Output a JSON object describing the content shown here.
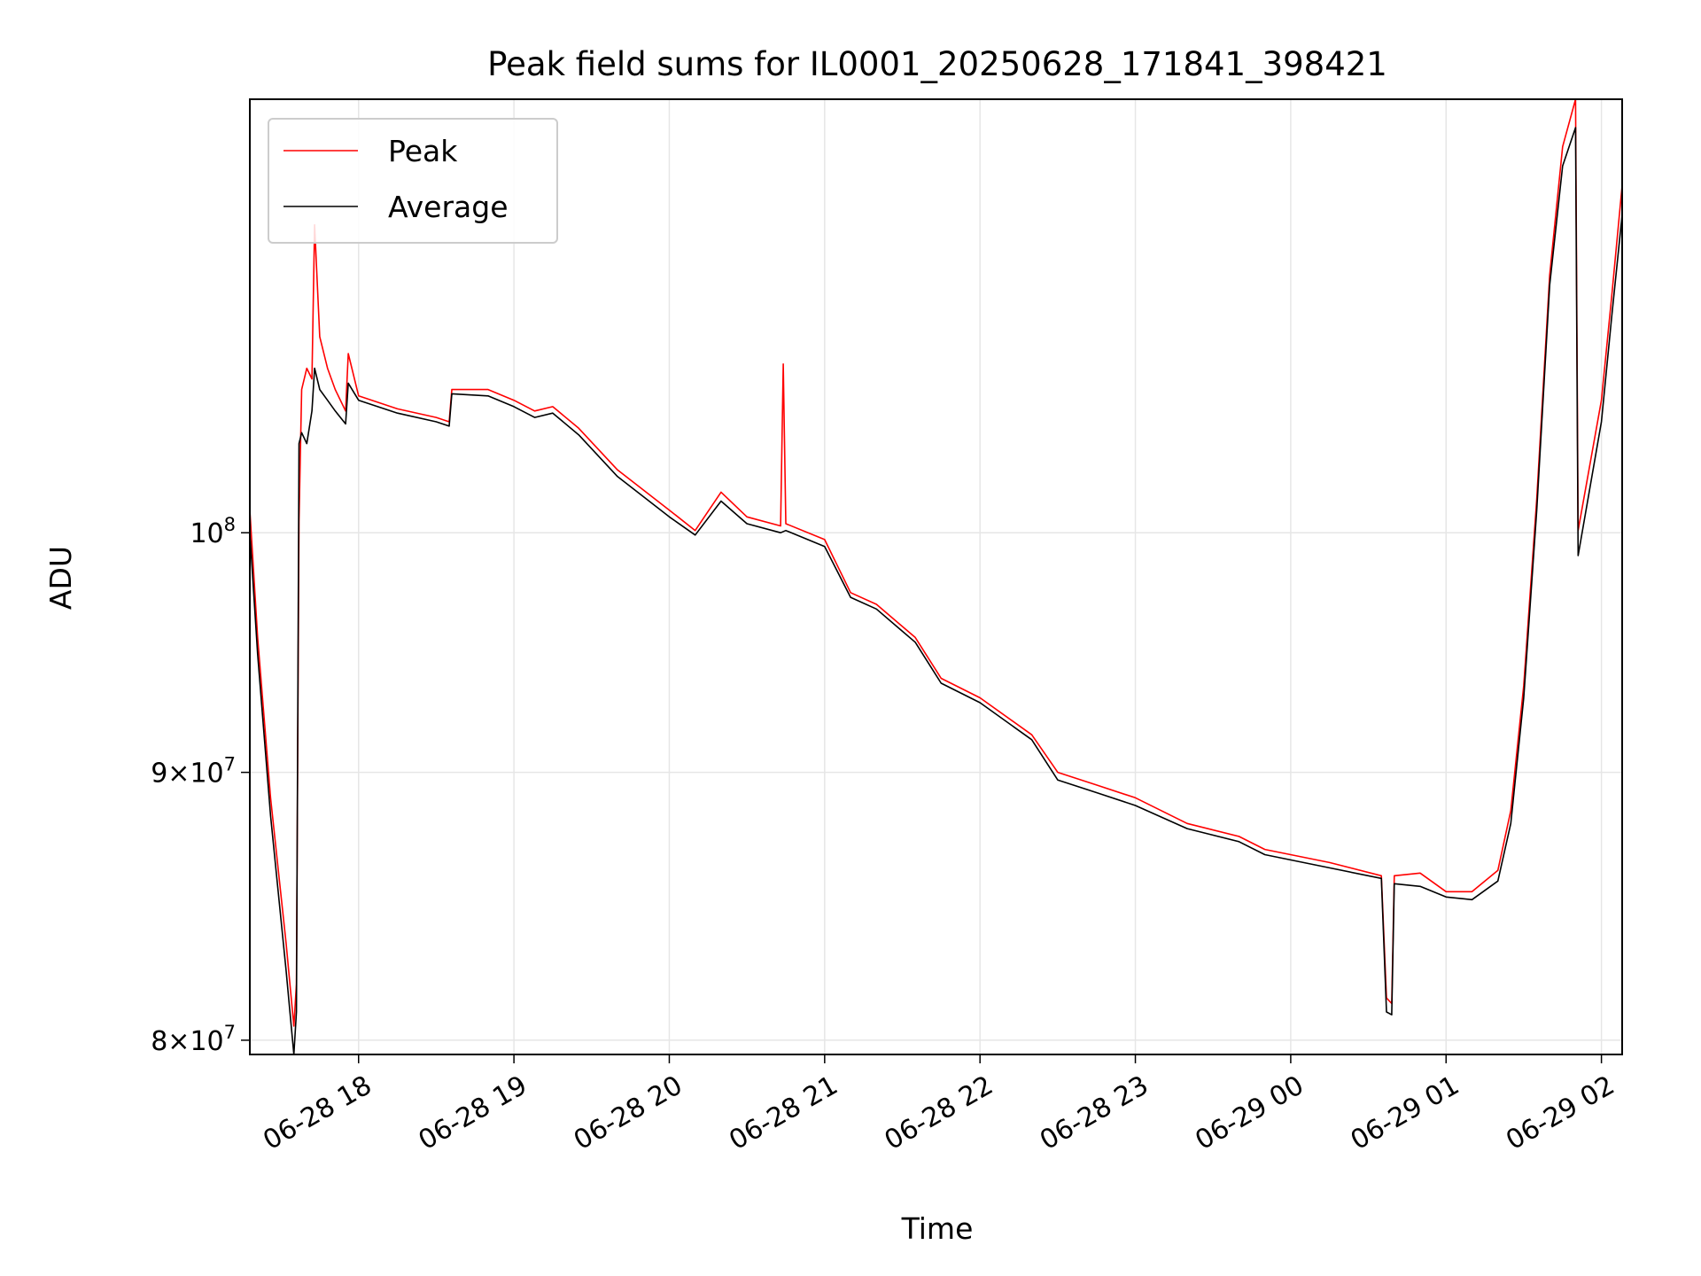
{
  "chart_data": {
    "type": "line",
    "title": "Peak field sums for IL0001_20250628_171841_398421",
    "xlabel": "Time",
    "ylabel": "ADU",
    "y_scale": "log",
    "x_start": "2025-06-28 17:18",
    "x_end": "2025-06-29 02:08",
    "xlim": [
      "2025-06-28 17:18",
      "2025-06-29 02:08"
    ],
    "ylim": [
      79500000,
      121000000
    ],
    "x_tick_labels": [
      "06-28 18",
      "06-28 19",
      "06-28 20",
      "06-28 21",
      "06-28 22",
      "06-28 23",
      "06-29 00",
      "06-29 01",
      "06-29 02"
    ],
    "x_tick_times": [
      "2025-06-28 18:00",
      "2025-06-28 19:00",
      "2025-06-28 20:00",
      "2025-06-28 21:00",
      "2025-06-28 22:00",
      "2025-06-28 23:00",
      "2025-06-29 00:00",
      "2025-06-29 01:00",
      "2025-06-29 02:00"
    ],
    "y_ticks": [
      {
        "value": 80000000,
        "mantissa": "8",
        "base": "10",
        "exp": "7"
      },
      {
        "value": 90000000,
        "mantissa": "9",
        "base": "10",
        "exp": "7"
      },
      {
        "value": 100000000,
        "mantissa": "",
        "base": "10",
        "exp": "8"
      }
    ],
    "grid": true,
    "legend": {
      "position": "top-left",
      "entries": [
        "Peak",
        "Average"
      ]
    },
    "series": [
      {
        "name": "Peak",
        "color": "#ff0000",
        "points": [
          [
            "2025-06-28 17:18",
            101000000
          ],
          [
            "2025-06-28 17:21",
            95500000
          ],
          [
            "2025-06-28 17:26",
            89000000
          ],
          [
            "2025-06-28 17:32",
            83500000
          ],
          [
            "2025-06-28 17:35",
            80500000
          ],
          [
            "2025-06-28 17:36",
            82000000
          ],
          [
            "2025-06-28 17:37",
            100500000
          ],
          [
            "2025-06-28 17:38",
            106500000
          ],
          [
            "2025-06-28 17:40",
            107500000
          ],
          [
            "2025-06-28 17:42",
            107000000
          ],
          [
            "2025-06-28 17:43",
            114500000
          ],
          [
            "2025-06-28 17:45",
            109000000
          ],
          [
            "2025-06-28 17:48",
            107500000
          ],
          [
            "2025-06-28 17:51",
            106500000
          ],
          [
            "2025-06-28 17:55",
            105500000
          ],
          [
            "2025-06-28 17:56",
            108200000
          ],
          [
            "2025-06-28 18:00",
            106200000
          ],
          [
            "2025-06-28 18:15",
            105600000
          ],
          [
            "2025-06-28 18:30",
            105200000
          ],
          [
            "2025-06-28 18:35",
            105000000
          ],
          [
            "2025-06-28 18:36",
            106500000
          ],
          [
            "2025-06-28 18:50",
            106500000
          ],
          [
            "2025-06-28 19:00",
            106000000
          ],
          [
            "2025-06-28 19:08",
            105500000
          ],
          [
            "2025-06-28 19:15",
            105700000
          ],
          [
            "2025-06-28 19:25",
            104700000
          ],
          [
            "2025-06-28 19:40",
            102800000
          ],
          [
            "2025-06-28 20:00",
            101000000
          ],
          [
            "2025-06-28 20:10",
            100100000
          ],
          [
            "2025-06-28 20:20",
            101800000
          ],
          [
            "2025-06-28 20:30",
            100700000
          ],
          [
            "2025-06-28 20:43",
            100300000
          ],
          [
            "2025-06-28 20:44",
            107700000
          ],
          [
            "2025-06-28 20:45",
            100400000
          ],
          [
            "2025-06-28 21:00",
            99700000
          ],
          [
            "2025-06-28 21:10",
            97400000
          ],
          [
            "2025-06-28 21:20",
            96900000
          ],
          [
            "2025-06-28 21:35",
            95500000
          ],
          [
            "2025-06-28 21:45",
            93800000
          ],
          [
            "2025-06-28 22:00",
            93000000
          ],
          [
            "2025-06-28 22:20",
            91500000
          ],
          [
            "2025-06-28 22:30",
            90000000
          ],
          [
            "2025-06-28 22:45",
            89500000
          ],
          [
            "2025-06-28 23:00",
            89000000
          ],
          [
            "2025-06-28 23:20",
            88000000
          ],
          [
            "2025-06-28 23:40",
            87500000
          ],
          [
            "2025-06-28 23:50",
            87000000
          ],
          [
            "2025-06-29 00:15",
            86500000
          ],
          [
            "2025-06-29 00:35",
            86000000
          ],
          [
            "2025-06-29 00:37",
            81500000
          ],
          [
            "2025-06-29 00:39",
            81300000
          ],
          [
            "2025-06-29 00:40",
            86000000
          ],
          [
            "2025-06-29 00:50",
            86100000
          ],
          [
            "2025-06-29 01:00",
            85400000
          ],
          [
            "2025-06-29 01:10",
            85400000
          ],
          [
            "2025-06-29 01:20",
            86200000
          ],
          [
            "2025-06-29 01:25",
            88500000
          ],
          [
            "2025-06-29 01:30",
            93500000
          ],
          [
            "2025-06-29 01:35",
            101500000
          ],
          [
            "2025-06-29 01:40",
            112000000
          ],
          [
            "2025-06-29 01:45",
            118500000
          ],
          [
            "2025-06-29 01:50",
            121000000
          ],
          [
            "2025-06-29 01:51",
            100100000
          ],
          [
            "2025-06-29 02:00",
            106000000
          ],
          [
            "2025-06-29 02:04",
            111000000
          ],
          [
            "2025-06-29 02:08",
            116500000
          ]
        ]
      },
      {
        "name": "Average",
        "color": "#000000",
        "points": [
          [
            "2025-06-28 17:18",
            100000000
          ],
          [
            "2025-06-28 17:21",
            94800000
          ],
          [
            "2025-06-28 17:26",
            88300000
          ],
          [
            "2025-06-28 17:32",
            82500000
          ],
          [
            "2025-06-28 17:35",
            79500000
          ],
          [
            "2025-06-28 17:36",
            81000000
          ],
          [
            "2025-06-28 17:37",
            104000000
          ],
          [
            "2025-06-28 17:38",
            104500000
          ],
          [
            "2025-06-28 17:40",
            104000000
          ],
          [
            "2025-06-28 17:42",
            105500000
          ],
          [
            "2025-06-28 17:43",
            107500000
          ],
          [
            "2025-06-28 17:45",
            106500000
          ],
          [
            "2025-06-28 17:48",
            106000000
          ],
          [
            "2025-06-28 17:51",
            105500000
          ],
          [
            "2025-06-28 17:55",
            104900000
          ],
          [
            "2025-06-28 17:56",
            106800000
          ],
          [
            "2025-06-28 18:00",
            106000000
          ],
          [
            "2025-06-28 18:15",
            105400000
          ],
          [
            "2025-06-28 18:30",
            105000000
          ],
          [
            "2025-06-28 18:35",
            104800000
          ],
          [
            "2025-06-28 18:36",
            106300000
          ],
          [
            "2025-06-28 18:50",
            106200000
          ],
          [
            "2025-06-28 19:00",
            105700000
          ],
          [
            "2025-06-28 19:08",
            105200000
          ],
          [
            "2025-06-28 19:15",
            105400000
          ],
          [
            "2025-06-28 19:25",
            104400000
          ],
          [
            "2025-06-28 19:40",
            102500000
          ],
          [
            "2025-06-28 20:00",
            100700000
          ],
          [
            "2025-06-28 20:10",
            99900000
          ],
          [
            "2025-06-28 20:20",
            101400000
          ],
          [
            "2025-06-28 20:30",
            100400000
          ],
          [
            "2025-06-28 20:43",
            100000000
          ],
          [
            "2025-06-28 20:45",
            100100000
          ],
          [
            "2025-06-28 21:00",
            99400000
          ],
          [
            "2025-06-28 21:10",
            97200000
          ],
          [
            "2025-06-28 21:20",
            96700000
          ],
          [
            "2025-06-28 21:35",
            95300000
          ],
          [
            "2025-06-28 21:45",
            93600000
          ],
          [
            "2025-06-28 22:00",
            92800000
          ],
          [
            "2025-06-28 22:20",
            91300000
          ],
          [
            "2025-06-28 22:30",
            89700000
          ],
          [
            "2025-06-28 22:45",
            89200000
          ],
          [
            "2025-06-28 23:00",
            88700000
          ],
          [
            "2025-06-28 23:20",
            87800000
          ],
          [
            "2025-06-28 23:40",
            87300000
          ],
          [
            "2025-06-28 23:50",
            86800000
          ],
          [
            "2025-06-29 00:15",
            86300000
          ],
          [
            "2025-06-29 00:35",
            85900000
          ],
          [
            "2025-06-29 00:37",
            81000000
          ],
          [
            "2025-06-29 00:39",
            80900000
          ],
          [
            "2025-06-29 00:40",
            85700000
          ],
          [
            "2025-06-29 00:50",
            85600000
          ],
          [
            "2025-06-29 01:00",
            85200000
          ],
          [
            "2025-06-29 01:10",
            85100000
          ],
          [
            "2025-06-29 01:20",
            85800000
          ],
          [
            "2025-06-29 01:25",
            88000000
          ],
          [
            "2025-06-29 01:30",
            93000000
          ],
          [
            "2025-06-29 01:35",
            101000000
          ],
          [
            "2025-06-29 01:40",
            111500000
          ],
          [
            "2025-06-29 01:45",
            117500000
          ],
          [
            "2025-06-29 01:50",
            119500000
          ],
          [
            "2025-06-29 01:51",
            99000000
          ],
          [
            "2025-06-29 02:00",
            105000000
          ],
          [
            "2025-06-29 02:04",
            110000000
          ],
          [
            "2025-06-29 02:08",
            115000000
          ]
        ]
      }
    ]
  }
}
